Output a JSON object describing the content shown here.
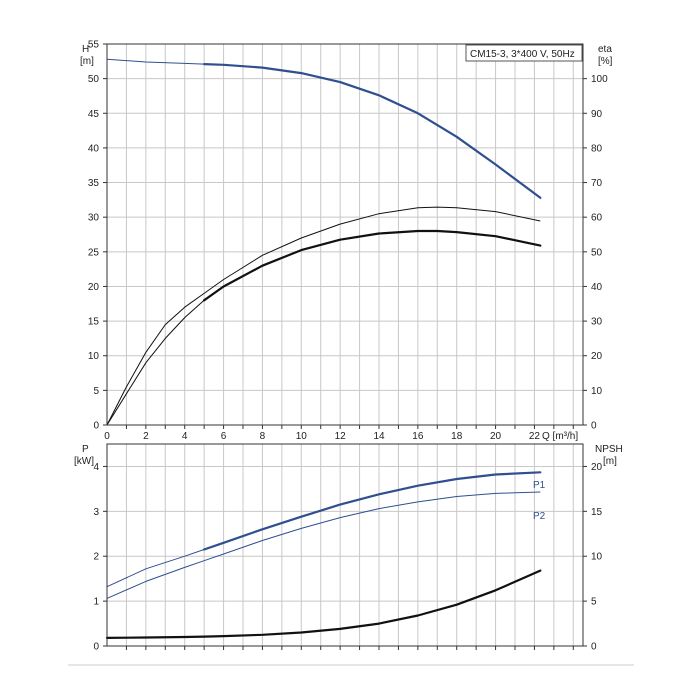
{
  "chart_data": [
    {
      "type": "line",
      "legend_box": "CM15-3, 3*400 V, 50Hz",
      "xlabel": "Q [m³/h]",
      "x_ticks": [
        "0",
        "2",
        "4",
        "6",
        "8",
        "10",
        "12",
        "14",
        "16",
        "18",
        "20",
        "22"
      ],
      "xlim": [
        0,
        24.5
      ],
      "left_axis": {
        "label_top": "H",
        "label_unit": "[m]",
        "ylim": [
          0,
          55
        ],
        "ticks": [
          "0",
          "5",
          "10",
          "15",
          "20",
          "25",
          "30",
          "35",
          "40",
          "45",
          "50",
          "55"
        ]
      },
      "right_axis": {
        "label_top": "eta",
        "label_unit": "[%]",
        "ylim": [
          0,
          110
        ],
        "ticks": [
          "0",
          "10",
          "20",
          "30",
          "40",
          "50",
          "60",
          "70",
          "80",
          "90",
          "100"
        ]
      },
      "grid": true,
      "series": [
        {
          "color": "#2f4f8f",
          "axis": "left",
          "x": [
            0,
            2,
            4,
            5,
            6,
            8,
            10,
            12,
            14,
            16,
            18,
            20,
            22.3
          ],
          "y": [
            52.8,
            52.4,
            52.2,
            52.1,
            52.0,
            51.6,
            50.8,
            49.5,
            47.6,
            45.0,
            41.6,
            37.6,
            32.8
          ],
          "bold_from": 5
        },
        {
          "color": "#111111",
          "axis": "right",
          "x": [
            0,
            1,
            2,
            3,
            4,
            5,
            6,
            8,
            10,
            12,
            14,
            16,
            17,
            18,
            20,
            22.3
          ],
          "y": [
            0,
            9,
            18,
            25,
            31,
            36,
            40,
            46,
            50.5,
            53.5,
            55.3,
            56.0,
            56.0,
            55.7,
            54.5,
            51.8
          ],
          "bold_from": 5
        },
        {
          "color": "#111111",
          "axis": "right",
          "x": [
            0,
            1,
            2,
            3,
            4,
            5,
            6,
            8,
            10,
            12,
            14,
            16,
            17,
            18,
            20,
            22.3
          ],
          "y": [
            0,
            11,
            21,
            29,
            34,
            38,
            42,
            49,
            54,
            58,
            61,
            62.7,
            62.9,
            62.7,
            61.6,
            58.9
          ],
          "bold_from": null
        }
      ]
    },
    {
      "type": "line",
      "xlim": [
        0,
        24.5
      ],
      "left_axis": {
        "label_top": "P",
        "label_unit": "[kW]",
        "ylim": [
          0,
          4.5
        ],
        "ticks": [
          "0",
          "1",
          "2",
          "3",
          "4"
        ]
      },
      "right_axis": {
        "label_top": "NPSH",
        "label_unit": "[m]",
        "ylim": [
          0,
          22.5
        ],
        "ticks": [
          "0",
          "5",
          "10",
          "15",
          "20"
        ]
      },
      "grid": true,
      "series": [
        {
          "name": "P1",
          "color": "#2f4f8f",
          "axis": "left",
          "x": [
            0,
            2,
            4,
            5,
            6,
            8,
            10,
            12,
            14,
            16,
            18,
            20,
            22.3
          ],
          "y": [
            1.32,
            1.72,
            2.0,
            2.15,
            2.3,
            2.6,
            2.88,
            3.15,
            3.38,
            3.57,
            3.72,
            3.82,
            3.87
          ],
          "bold_from": 5
        },
        {
          "name": "P2",
          "color": "#2f4f8f",
          "axis": "left",
          "x": [
            0,
            2,
            4,
            5,
            6,
            8,
            10,
            12,
            14,
            16,
            18,
            20,
            22.3
          ],
          "y": [
            1.06,
            1.44,
            1.75,
            1.9,
            2.05,
            2.35,
            2.62,
            2.86,
            3.06,
            3.21,
            3.33,
            3.4,
            3.43
          ],
          "bold_from": null
        },
        {
          "color": "#111111",
          "axis": "left",
          "x": [
            0,
            2,
            4,
            5,
            6,
            8,
            10,
            12,
            14,
            16,
            18,
            20,
            22.3
          ],
          "y": [
            0.18,
            0.19,
            0.2,
            0.21,
            0.22,
            0.25,
            0.3,
            0.38,
            0.5,
            0.68,
            0.92,
            1.24,
            1.68
          ],
          "bold_from": 0
        }
      ]
    }
  ]
}
